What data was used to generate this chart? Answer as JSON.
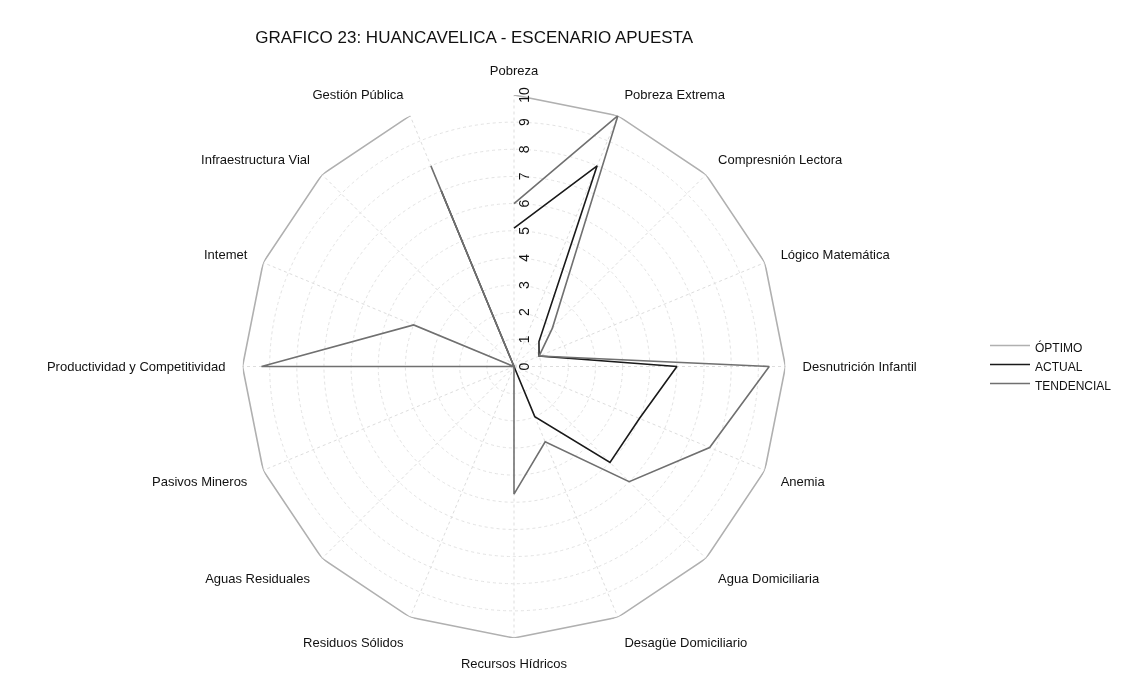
{
  "chart_data": {
    "type": "radar",
    "title": "GRAFICO 23: HUANCAVELICA - ESCENARIO APUESTA",
    "categories": [
      "Pobreza",
      "Pobreza Extrema",
      "Compresnión Lectora",
      "Lógico Matemática",
      "Desnutrición Infantil",
      "Anemia",
      "Agua Domiciliaria",
      "Desagüe Domiciliario",
      "Recursos Hídricos",
      "Residuos Sólidos",
      "Aguas Residuales",
      "Pasivos Mineros",
      "Productividad y Competitividad",
      "Intemet",
      "Infraestructura Vial",
      "Gestión Pública"
    ],
    "series": [
      {
        "name": "ÓPTIMO",
        "color": "#b0b0b0",
        "values": [
          10,
          10,
          10,
          10,
          10,
          10,
          10,
          10,
          10,
          10,
          10,
          10,
          10,
          10,
          10,
          10
        ]
      },
      {
        "name": "ACTUAL",
        "color": "#1a1a1a",
        "values": [
          5.1,
          8,
          1.3,
          1,
          6,
          5,
          5,
          2,
          0,
          0,
          0,
          0,
          0,
          0,
          0,
          7
        ]
      },
      {
        "name": "TENDENCIAL",
        "color": "#707070",
        "values": [
          6,
          10,
          2,
          1,
          9.4,
          7.8,
          6,
          3,
          4.7,
          0,
          0,
          0,
          9.3,
          4,
          0,
          8
        ]
      }
    ],
    "ylim": [
      0,
      10
    ],
    "yticks": [
      0,
      1,
      2,
      3,
      4,
      5,
      6,
      7,
      8,
      9,
      10
    ],
    "grid": true,
    "legend": "right"
  }
}
